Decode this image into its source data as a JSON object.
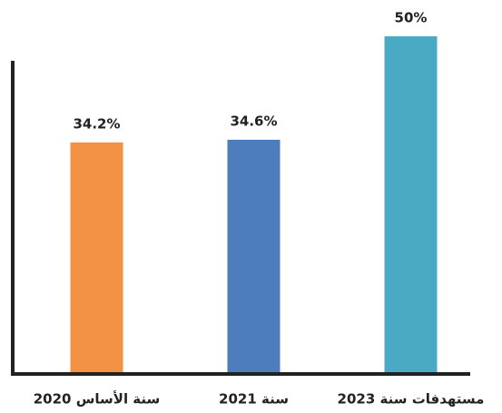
{
  "chart_data": {
    "type": "bar",
    "categories": [
      "سنة الأساس 2020",
      "سنة 2021",
      "مستهدفات سنة 2023"
    ],
    "values": [
      34.2,
      34.6,
      50
    ],
    "value_labels": [
      "34.2%",
      "34.6%",
      "50%"
    ],
    "colors": [
      "#f39244",
      "#4e7dbd",
      "#4aa9c3"
    ],
    "ylim": [
      0,
      50
    ]
  }
}
